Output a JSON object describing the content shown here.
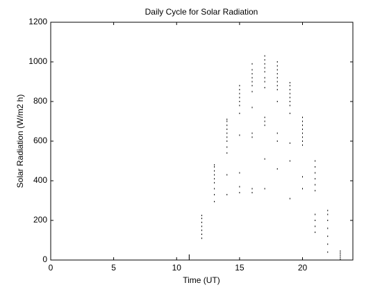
{
  "chart_data": {
    "type": "scatter",
    "title": "Daily Cycle for Solar Radiation",
    "xlabel": "Time (UT)",
    "ylabel": "Solar Radiation (W/m2 h)",
    "color": "#000000",
    "xlim": [
      0,
      24
    ],
    "xticks": [
      0,
      5,
      10,
      15,
      20
    ],
    "ylim": [
      0,
      1200
    ],
    "yticks": [
      0,
      200,
      400,
      600,
      800,
      1000,
      1200
    ],
    "x": [
      11,
      11,
      11,
      11,
      11,
      12,
      12,
      12,
      12,
      12,
      12,
      12,
      13,
      13,
      13,
      13,
      13,
      13,
      13,
      13,
      13,
      14,
      14,
      14,
      14,
      14,
      14,
      14,
      14,
      14,
      14,
      14,
      15,
      15,
      15,
      15,
      15,
      15,
      15,
      15,
      15,
      15,
      15,
      16,
      16,
      16,
      16,
      16,
      16,
      16,
      16,
      16,
      16,
      16,
      16,
      17,
      17,
      17,
      17,
      17,
      17,
      17,
      17,
      17,
      17,
      17,
      17,
      17,
      18,
      18,
      18,
      18,
      18,
      18,
      18,
      18,
      18,
      18,
      18,
      18,
      19,
      19,
      19,
      19,
      19,
      19,
      19,
      19,
      19,
      19,
      19,
      20,
      20,
      20,
      20,
      20,
      20,
      20,
      20,
      20,
      20,
      21,
      21,
      21,
      21,
      21,
      21,
      21,
      21,
      21,
      21,
      22,
      22,
      22,
      22,
      22,
      22,
      22,
      23,
      23,
      23,
      23,
      23
    ],
    "y": [
      5,
      10,
      15,
      20,
      25,
      110,
      130,
      150,
      170,
      190,
      210,
      225,
      295,
      330,
      360,
      390,
      410,
      430,
      450,
      470,
      480,
      330,
      430,
      540,
      570,
      600,
      620,
      640,
      660,
      680,
      700,
      710,
      340,
      370,
      440,
      630,
      740,
      780,
      800,
      820,
      840,
      860,
      880,
      340,
      360,
      620,
      640,
      770,
      850,
      880,
      900,
      920,
      940,
      960,
      990,
      360,
      510,
      680,
      700,
      720,
      870,
      900,
      920,
      950,
      970,
      990,
      1010,
      1030,
      460,
      600,
      640,
      800,
      860,
      880,
      900,
      920,
      940,
      960,
      980,
      1000,
      310,
      500,
      590,
      740,
      780,
      800,
      820,
      840,
      860,
      880,
      895,
      360,
      420,
      580,
      600,
      620,
      640,
      660,
      680,
      700,
      720,
      140,
      170,
      200,
      230,
      350,
      380,
      410,
      440,
      470,
      500,
      40,
      80,
      120,
      160,
      200,
      230,
      250,
      5,
      15,
      25,
      35,
      45
    ]
  }
}
